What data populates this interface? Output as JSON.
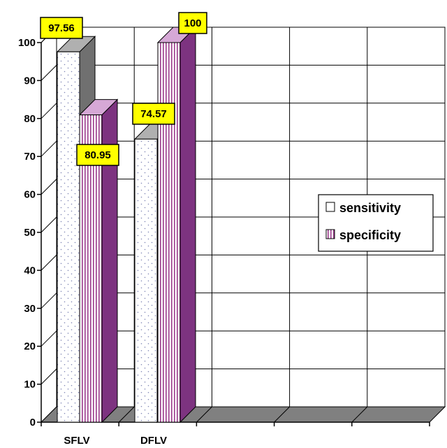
{
  "chart_data": {
    "type": "bar",
    "title": "",
    "xlabel": "",
    "ylabel": "",
    "categories": [
      "SFLV",
      "DFLV"
    ],
    "series": [
      {
        "name": "sensitivity",
        "values": [
          97.56,
          74.57
        ]
      },
      {
        "name": "specificity",
        "values": [
          80.95,
          100
        ]
      }
    ],
    "data_labels": {
      "sensitivity": [
        "97.56",
        "74.57"
      ],
      "specificity": [
        "80.95",
        "100"
      ]
    },
    "ylim": [
      0,
      100
    ],
    "yticks": [
      "0",
      "10",
      "20",
      "30",
      "40",
      "50",
      "60",
      "70",
      "80",
      "90",
      "100"
    ],
    "grid": true,
    "three_d": true,
    "legend_position": "right",
    "data_label_color": "#ffff00"
  }
}
